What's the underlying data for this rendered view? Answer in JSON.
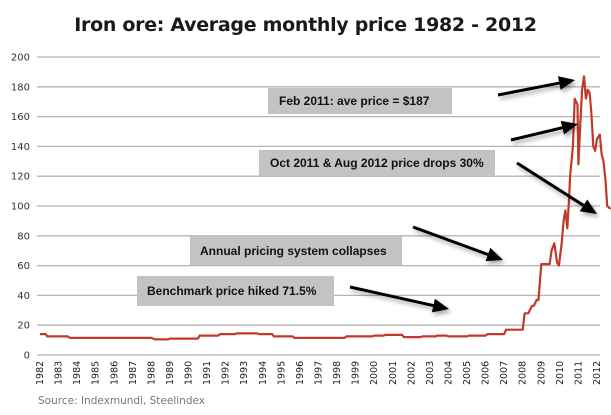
{
  "chart_data": {
    "type": "line",
    "title": "Iron ore: Average monthly price 1982 - 2012",
    "xlabel": "",
    "ylabel": "",
    "source": "Source: Indexmundi, Steelindex",
    "ylim": [
      0,
      200
    ],
    "yticks": [
      0,
      20,
      40,
      60,
      80,
      100,
      120,
      140,
      160,
      180,
      200
    ],
    "xlim": [
      1982,
      2012.8
    ],
    "xticks": [
      "1982",
      "1983",
      "1984",
      "1985",
      "1986",
      "1987",
      "1988",
      "1989",
      "1990",
      "1991",
      "1992",
      "1993",
      "1994",
      "1995",
      "1996",
      "1997",
      "1998",
      "1999",
      "2000",
      "2001",
      "2002",
      "2003",
      "2004",
      "2005",
      "2006",
      "2007",
      "2008",
      "2009",
      "2010",
      "2011",
      "2012"
    ],
    "grid": true,
    "legend": "none",
    "series": [
      {
        "name": "Iron ore average monthly price",
        "color": "#c0392b",
        "x": [
          1982.0,
          1982.3,
          1982.4,
          1983.5,
          1983.6,
          1986.8,
          1987.0,
          1988.0,
          1988.2,
          1988.9,
          1989.0,
          1990.5,
          1990.6,
          1991.6,
          1991.7,
          1992.5,
          1992.6,
          1993.7,
          1993.8,
          1994.5,
          1994.6,
          1995.6,
          1995.7,
          1998.4,
          1998.5,
          1999.9,
          2000.0,
          2000.5,
          2000.6,
          2001.5,
          2001.6,
          2002.5,
          2002.6,
          2003.3,
          2003.4,
          2003.9,
          2004.0,
          2005.0,
          2005.1,
          2006.0,
          2006.1,
          2007.0,
          2007.1,
          2008.0,
          2008.1,
          2008.3,
          2008.5,
          2008.6,
          2008.75,
          2008.85,
          2009.0,
          2009.1,
          2009.3,
          2009.45,
          2009.55,
          2009.7,
          2009.85,
          2009.95,
          2010.1,
          2010.2,
          2010.3,
          2010.4,
          2010.5,
          2010.55,
          2010.7,
          2010.8,
          2010.95,
          2011.0,
          2011.1,
          2011.2,
          2011.3,
          2011.4,
          2011.5,
          2011.6,
          2011.7,
          2011.8,
          2011.9,
          2012.0,
          2012.15,
          2012.25,
          2012.35,
          2012.45,
          2012.55,
          2012.65,
          2012.72
        ],
        "y": [
          14,
          14,
          12.5,
          12.5,
          11.5,
          11.5,
          11.5,
          11.5,
          10.5,
          10.5,
          11,
          11,
          13,
          13,
          14,
          14,
          14.5,
          14.5,
          14,
          14,
          12.5,
          12.5,
          11.5,
          11.5,
          12.5,
          12.5,
          13,
          13,
          13.5,
          13.5,
          12,
          12,
          12.5,
          12.5,
          13,
          13,
          12.5,
          12.5,
          13,
          13,
          14,
          14,
          17,
          17,
          28,
          28,
          33,
          33,
          37,
          37,
          61,
          61,
          61,
          61,
          70,
          75,
          62,
          60,
          75,
          90,
          97,
          85,
          105,
          120,
          140,
          172,
          168,
          128,
          155,
          178,
          187,
          172,
          178,
          176,
          162,
          140,
          137,
          145,
          148,
          135,
          130,
          118,
          100,
          99,
          98
        ],
        "note": "approximate values read off chart gridlines; time points are fractional years"
      }
    ],
    "annotations": [
      {
        "label": "Feb 2011: ave price = $187",
        "points_to": "peak early 2011"
      },
      {
        "label": "Oct 2011 & Aug 2012 price drops 30%",
        "points_to": "declines late 2011 and 2012"
      },
      {
        "label": "Annual pricing system collapses",
        "points_to": "2008 step to ~60"
      },
      {
        "label": "Benchmark price hiked 71.5%",
        "points_to": "2005 step"
      }
    ]
  }
}
